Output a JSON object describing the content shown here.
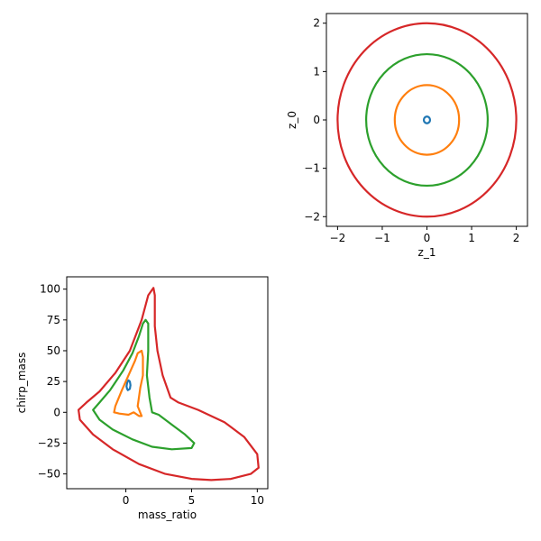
{
  "chart_data": [
    {
      "type": "line",
      "xlabel": "z_1",
      "ylabel": "z_0",
      "xlim": [
        -2.25,
        2.25
      ],
      "ylim": [
        -2.2,
        2.2
      ],
      "xticks": [
        -2,
        -1,
        0,
        1,
        2
      ],
      "yticks": [
        -2,
        -1,
        0,
        1,
        2
      ],
      "grid": false,
      "series": [
        {
          "color": "#1f77b4",
          "shape": "circle",
          "center": [
            0,
            0
          ],
          "radius": 0.07
        },
        {
          "color": "#ff7f0e",
          "shape": "circle",
          "center": [
            0,
            0
          ],
          "radius": 0.72
        },
        {
          "color": "#2ca02c",
          "shape": "circle",
          "center": [
            0,
            0
          ],
          "radius": 1.36
        },
        {
          "color": "#d62728",
          "shape": "circle",
          "center": [
            0,
            0
          ],
          "radius": 2.0
        }
      ]
    },
    {
      "type": "line",
      "xlabel": "mass_ratio",
      "ylabel": "chirp_mass",
      "xlim": [
        -4.5,
        10.8
      ],
      "ylim": [
        -62,
        110
      ],
      "xticks": [
        0,
        5,
        10
      ],
      "yticks": [
        -50,
        -25,
        0,
        25,
        50,
        75,
        100
      ],
      "grid": false,
      "series": [
        {
          "color": "#1f77b4",
          "points": [
            [
              0.1,
              19
            ],
            [
              0.15,
              18
            ],
            [
              0.3,
              19
            ],
            [
              0.35,
              22
            ],
            [
              0.3,
              25
            ],
            [
              0.2,
              26
            ],
            [
              0.1,
              24
            ],
            [
              0.05,
              21
            ],
            [
              0.1,
              19
            ]
          ]
        },
        {
          "color": "#ff7f0e",
          "points": [
            [
              -0.9,
              0
            ],
            [
              -0.8,
              5
            ],
            [
              -0.3,
              18
            ],
            [
              0.2,
              30
            ],
            [
              0.7,
              42
            ],
            [
              0.9,
              48
            ],
            [
              1.2,
              50
            ],
            [
              1.3,
              45
            ],
            [
              1.3,
              30
            ],
            [
              1.1,
              20
            ],
            [
              0.9,
              5
            ],
            [
              1.2,
              -3
            ],
            [
              1.0,
              -3
            ],
            [
              0.6,
              0
            ],
            [
              0.2,
              -2
            ],
            [
              -0.5,
              -1
            ],
            [
              -0.9,
              0
            ]
          ]
        },
        {
          "color": "#2ca02c",
          "points": [
            [
              -2.5,
              2
            ],
            [
              -2.0,
              8
            ],
            [
              -1.2,
              18
            ],
            [
              -0.2,
              34
            ],
            [
              0.5,
              48
            ],
            [
              1.0,
              62
            ],
            [
              1.3,
              72
            ],
            [
              1.5,
              75
            ],
            [
              1.7,
              72
            ],
            [
              1.7,
              50
            ],
            [
              1.6,
              30
            ],
            [
              1.8,
              12
            ],
            [
              2.0,
              0
            ],
            [
              2.5,
              -2
            ],
            [
              3.5,
              -10
            ],
            [
              4.5,
              -18
            ],
            [
              5.2,
              -25
            ],
            [
              5.0,
              -29
            ],
            [
              3.5,
              -30
            ],
            [
              2.0,
              -28
            ],
            [
              0.5,
              -22
            ],
            [
              -1.0,
              -14
            ],
            [
              -2.0,
              -6
            ],
            [
              -2.5,
              2
            ]
          ]
        },
        {
          "color": "#d62728",
          "points": [
            [
              -3.6,
              2
            ],
            [
              -3.0,
              8
            ],
            [
              -2.0,
              17
            ],
            [
              -0.8,
              32
            ],
            [
              0.3,
              50
            ],
            [
              1.2,
              75
            ],
            [
              1.7,
              95
            ],
            [
              2.1,
              101
            ],
            [
              2.2,
              95
            ],
            [
              2.2,
              70
            ],
            [
              2.4,
              50
            ],
            [
              2.8,
              30
            ],
            [
              3.4,
              12
            ],
            [
              4.0,
              8
            ],
            [
              5.5,
              2
            ],
            [
              7.5,
              -8
            ],
            [
              9.0,
              -20
            ],
            [
              10.0,
              -34
            ],
            [
              10.1,
              -45
            ],
            [
              9.5,
              -50
            ],
            [
              8.0,
              -54
            ],
            [
              6.5,
              -55
            ],
            [
              5.0,
              -54
            ],
            [
              3.0,
              -50
            ],
            [
              1.0,
              -42
            ],
            [
              -1.0,
              -30
            ],
            [
              -2.5,
              -18
            ],
            [
              -3.5,
              -6
            ],
            [
              -3.6,
              2
            ]
          ]
        }
      ]
    }
  ]
}
